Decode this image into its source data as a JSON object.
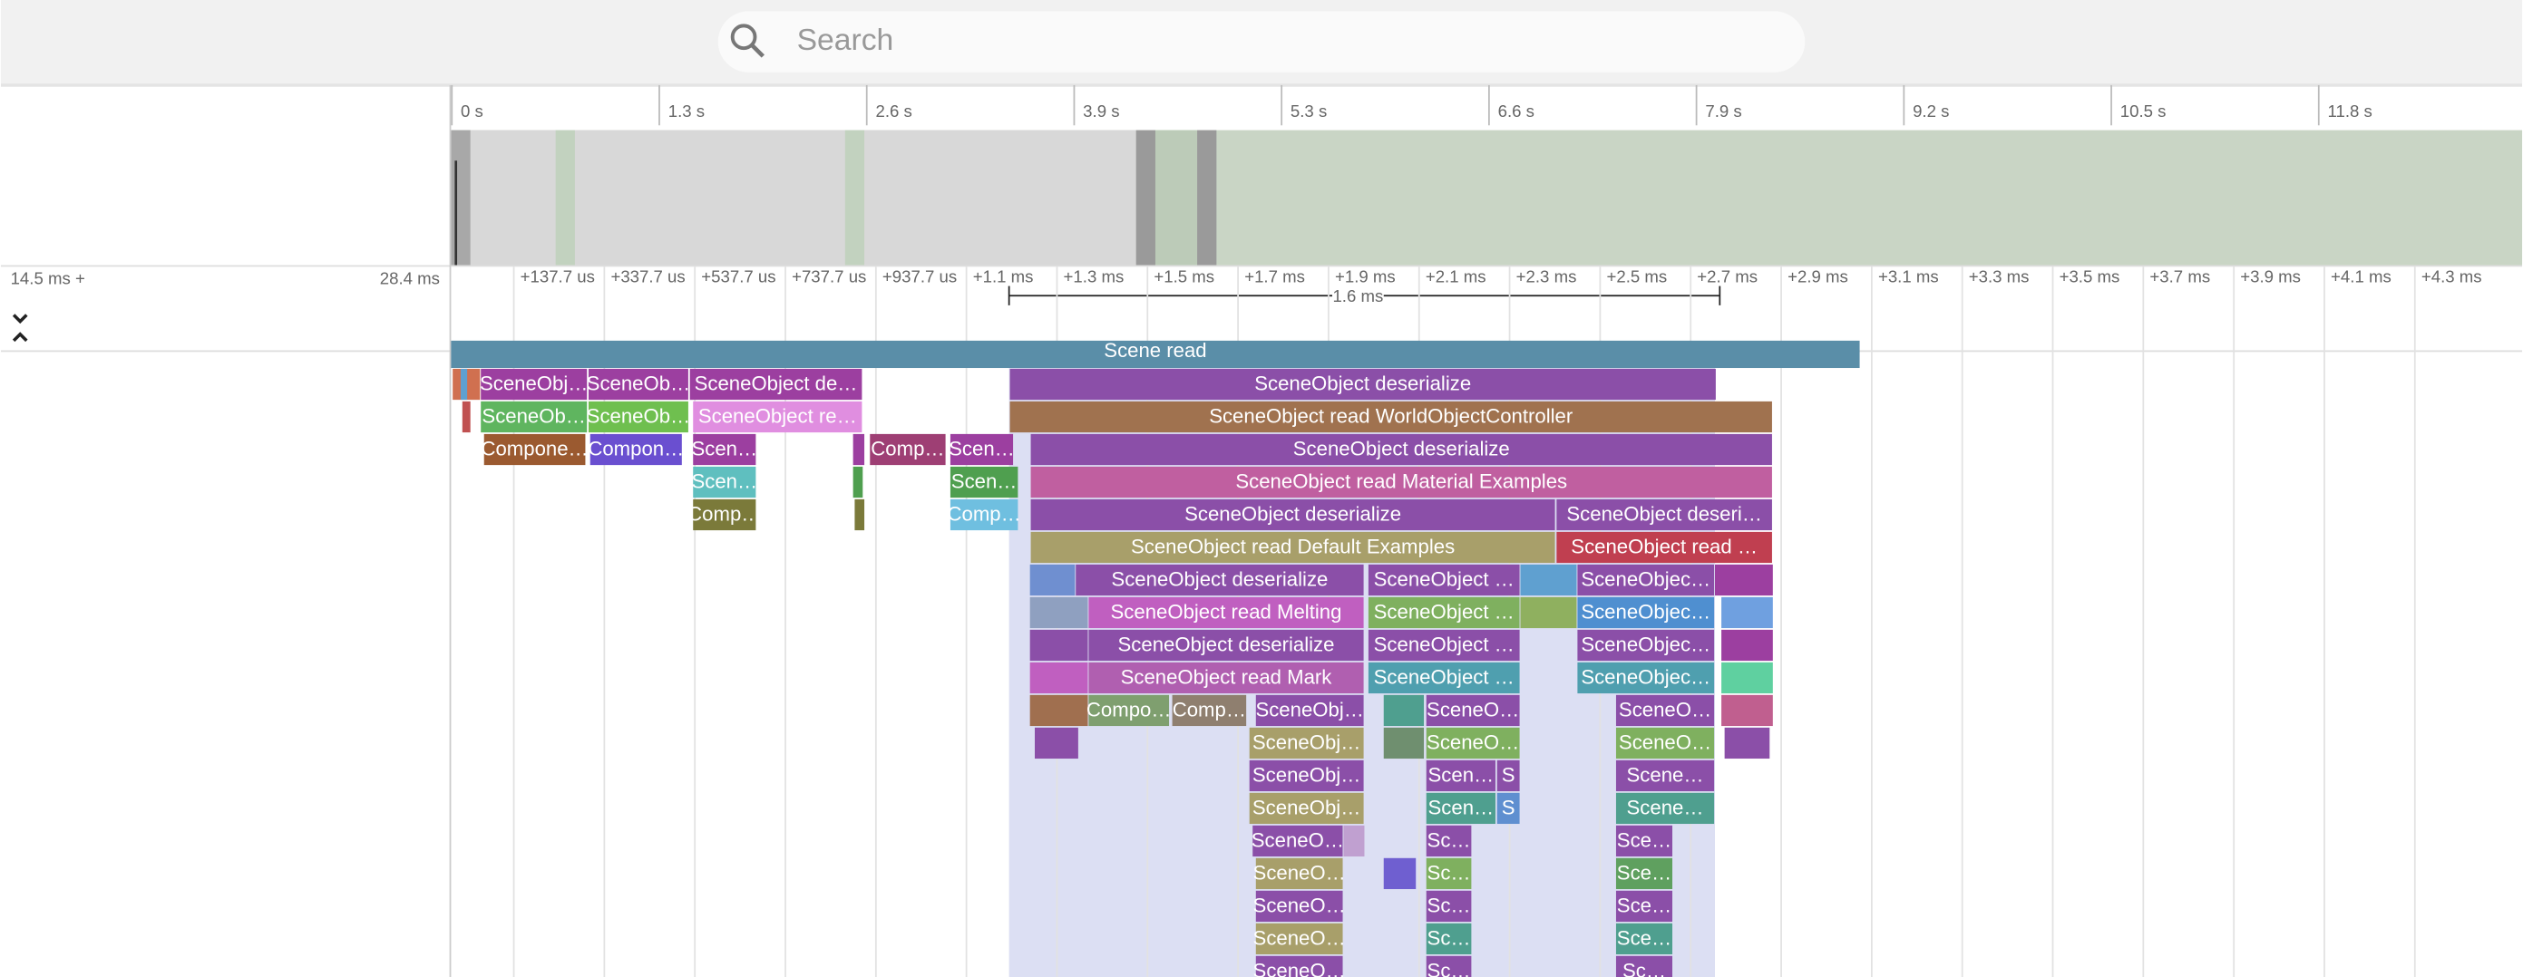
{
  "search": {
    "placeholder": "Search"
  },
  "overview": {
    "ticks": [
      "0 s",
      "1.3 s",
      "2.6 s",
      "3.9 s",
      "5.3 s",
      "6.6 s",
      "7.9 s",
      "9.2 s",
      "10.5 s",
      "11.8 s"
    ]
  },
  "detail": {
    "range_start": "14.5 ms +",
    "range_end": "28.4 ms",
    "selection": "1.6 ms",
    "ticks": [
      "+137.7 us",
      "+337.7 us",
      "+537.7 us",
      "+737.7 us",
      "+937.7 us",
      "+1.1 ms",
      "+1.3 ms",
      "+1.5 ms",
      "+1.7 ms",
      "+1.9 ms",
      "+2.1 ms",
      "+2.3 ms",
      "+2.5 ms",
      "+2.7 ms",
      "+2.9 ms",
      "+3.1 ms",
      "+3.3 ms",
      "+3.5 ms",
      "+3.7 ms",
      "+3.9 ms",
      "+4.1 ms",
      "+4.3 ms"
    ]
  },
  "flame": {
    "top": "Scene read",
    "blocks": [
      "SceneObj…",
      "SceneOb…",
      "SceneObject de…",
      "SceneObject deserialize",
      "SceneOb…",
      "SceneOb…",
      "SceneObject re…",
      "SceneObject read WorldObjectController",
      "Compone…",
      "Compon…",
      "Scen…",
      "Comp…",
      "Scen…",
      "SceneObject deserialize",
      "Scen…",
      "Scen…",
      "SceneObject read Material Examples",
      "Comp…",
      "Comp…",
      "SceneObject deserialize",
      "SceneObject deseri…",
      "SceneObject read Default Examples",
      "SceneObject read …",
      "SceneObject deserialize",
      "SceneObject …",
      "SceneObjec…",
      "SceneObject read Melting",
      "SceneObject …",
      "SceneObjec…",
      "SceneObject deserialize",
      "SceneObject …",
      "SceneObjec…",
      "SceneObject read Mark",
      "SceneObject …",
      "SceneObjec…",
      "Compo…",
      "Comp…",
      "SceneObj…",
      "SceneO…",
      "SceneO…",
      "SceneObj…",
      "SceneO…",
      "SceneO…",
      "SceneObj…",
      "Scen…",
      "S",
      "Scene…",
      "SceneObj…",
      "Scen…",
      "S",
      "Scene…",
      "SceneO…",
      "Sc…",
      "Sce…",
      "SceneO…",
      "Sc…",
      "Sce…",
      "SceneO…",
      "Sc…",
      "Sce…",
      "SceneO…",
      "Sc…",
      "Sce…",
      "SceneO…",
      "Sc…",
      "Sc…"
    ]
  }
}
